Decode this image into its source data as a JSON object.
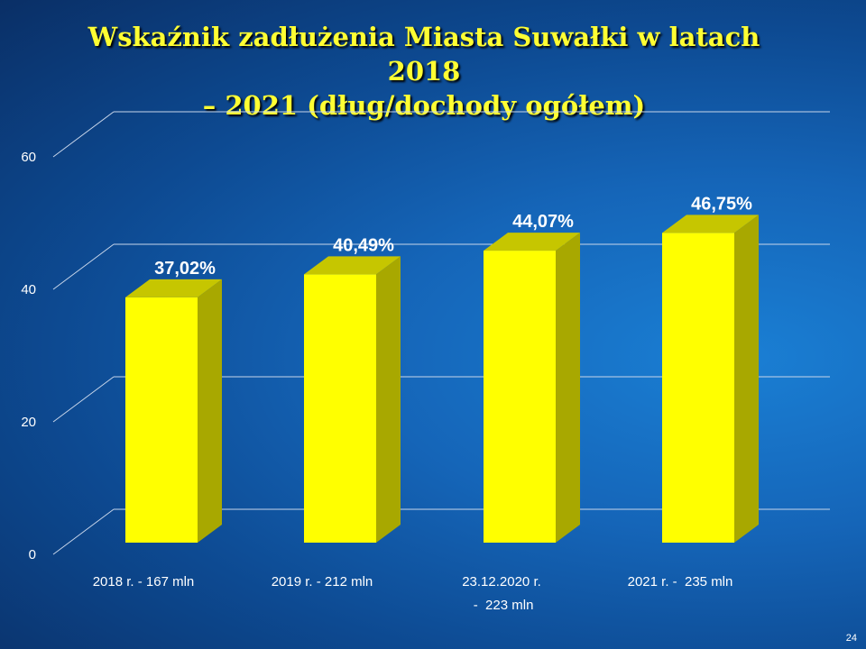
{
  "slide": {
    "number": "24"
  },
  "chart_data": {
    "type": "bar",
    "title_lines": [
      "Wskaźnik zadłużenia Miasta Suwałki w latach 2018",
      "– 2021 (dług/dochody ogółem)"
    ],
    "categories": [
      [
        "2018 r. - 167 mln"
      ],
      [
        "2019 r. - 212 mln"
      ],
      [
        "23.12.2020 r.",
        " -  223 mln"
      ],
      [
        "2021 r. -  235 mln"
      ]
    ],
    "values": [
      37.02,
      40.49,
      44.07,
      46.75
    ],
    "data_labels": [
      "37,02%",
      "40,49%",
      "44,07%",
      "46,75%"
    ],
    "ylim": [
      0,
      60
    ],
    "yticks": [
      0,
      20,
      40,
      60
    ],
    "grid": true,
    "legend": "none",
    "colors": {
      "bar_front": "#ffff00",
      "bar_side": "#a8a800",
      "bar_top": "#c6c600",
      "grid": "#c8d6ea"
    }
  }
}
